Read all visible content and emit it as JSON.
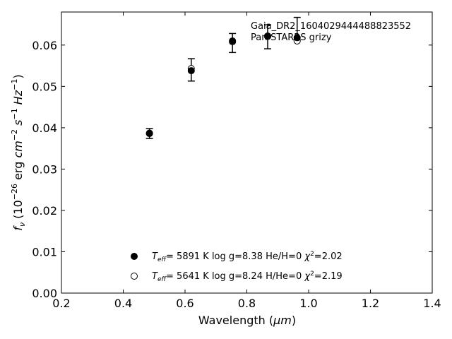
{
  "chart_data": {
    "type": "scatter",
    "xlabel_main": "Wavelength (",
    "xlabel_unit": "μm",
    "xlabel_close": ")",
    "ylabel_f": "f",
    "ylabel_nu": "ν",
    "ylabel_exp": "−26",
    "ylabel_m2": "−2",
    "ylabel_s1": "−1",
    "ylabel_hz1": "−1",
    "xlim": [
      0.2,
      1.4
    ],
    "ylim": [
      0.0,
      0.068
    ],
    "xticks": [
      0.2,
      0.4,
      0.6,
      0.8,
      1.0,
      1.2,
      1.4
    ],
    "xtick_labels": [
      "0.2",
      "0.4",
      "0.6",
      "0.8",
      "1.0",
      "1.2",
      "1.4"
    ],
    "yticks": [
      0.0,
      0.01,
      0.02,
      0.03,
      0.04,
      0.05,
      0.06
    ],
    "ytick_labels": [
      "0.00",
      "0.01",
      "0.02",
      "0.03",
      "0.04",
      "0.05",
      "0.06"
    ],
    "grid": false,
    "annotation_lines": [
      "Gaia_DR2_1604029444488823552",
      "Pan-STARRS grizy"
    ],
    "observed": {
      "x": [
        0.4849,
        0.6201,
        0.7535,
        0.8674,
        0.9628
      ],
      "y": [
        0.0386,
        0.054,
        0.0605,
        0.062,
        0.064
      ],
      "yerr": [
        0.0012,
        0.0027,
        0.0023,
        0.0029,
        0.0027
      ]
    },
    "series": [
      {
        "marker": "filled",
        "x": [
          0.4849,
          0.6201,
          0.7535,
          0.8674,
          0.9628
        ],
        "y": [
          0.0386,
          0.0538,
          0.061,
          0.0622,
          0.0618
        ],
        "legend": {
          "teff": "5891 K",
          "logg": "log g=8.38",
          "comp": "He/H=0",
          "chi2": "=2.02"
        }
      },
      {
        "marker": "open",
        "x": [
          0.4849,
          0.6201,
          0.7535,
          0.8674,
          0.9628
        ],
        "y": [
          0.0387,
          0.0543,
          0.0608,
          0.0621,
          0.061
        ],
        "legend": {
          "teff": "5641 K",
          "logg": "log g=8.24",
          "comp": "H/He=0",
          "chi2": "=2.19"
        }
      }
    ],
    "legend_placement": "lower-center",
    "legend_teff_T": "T",
    "legend_teff_sub": "eff",
    "legend_eq": "=",
    "legend_chi": "χ",
    "legend_chi_sup": "2"
  }
}
